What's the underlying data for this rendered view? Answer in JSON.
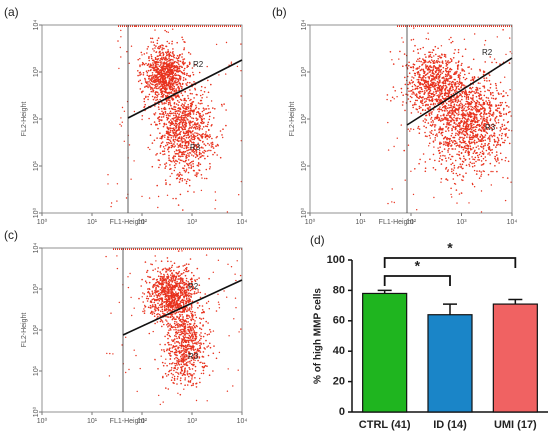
{
  "chart_data": [
    {
      "type": "scatter",
      "panel_label": "(a)",
      "xlabel": "FL1-Height",
      "ylabel": "FL2-Height",
      "log_scale": true,
      "xlim": [
        1,
        10000
      ],
      "ylim": [
        1,
        10000
      ],
      "xticks": [
        {
          "value": 1,
          "label": "10⁰"
        },
        {
          "value": 10,
          "label": "10¹"
        },
        {
          "value": 100,
          "label": "10²"
        },
        {
          "value": 1000,
          "label": "10³"
        },
        {
          "value": 10000,
          "label": "10⁴"
        }
      ],
      "yticks": [
        {
          "value": 1,
          "label": "10⁰"
        },
        {
          "value": 10,
          "label": "10¹"
        },
        {
          "value": 100,
          "label": "10²"
        },
        {
          "value": 1000,
          "label": "10³"
        },
        {
          "value": 10000,
          "label": "10⁴"
        }
      ],
      "gates": [
        "R2",
        "R3"
      ],
      "color": "#e8321e"
    },
    {
      "type": "scatter",
      "panel_label": "(b)",
      "xlabel": "FL1-Height",
      "ylabel": "FL2-Height",
      "log_scale": true,
      "xlim": [
        1,
        10000
      ],
      "ylim": [
        1,
        10000
      ],
      "xticks": [
        {
          "value": 1,
          "label": "10⁰"
        },
        {
          "value": 10,
          "label": "10¹"
        },
        {
          "value": 100,
          "label": "10²"
        },
        {
          "value": 1000,
          "label": "10³"
        },
        {
          "value": 10000,
          "label": "10⁴"
        }
      ],
      "yticks": [
        {
          "value": 1,
          "label": "10⁰"
        },
        {
          "value": 10,
          "label": "10¹"
        },
        {
          "value": 100,
          "label": "10²"
        },
        {
          "value": 1000,
          "label": "10³"
        },
        {
          "value": 10000,
          "label": "10⁴"
        }
      ],
      "gates": [
        "R2",
        "R3"
      ],
      "color": "#e8321e"
    },
    {
      "type": "scatter",
      "panel_label": "(c)",
      "xlabel": "FL1-Height",
      "ylabel": "FL2-Height",
      "log_scale": true,
      "xlim": [
        1,
        10000
      ],
      "ylim": [
        1,
        10000
      ],
      "xticks": [
        {
          "value": 1,
          "label": "10⁰"
        },
        {
          "value": 10,
          "label": "10¹"
        },
        {
          "value": 100,
          "label": "10²"
        },
        {
          "value": 1000,
          "label": "10³"
        },
        {
          "value": 10000,
          "label": "10⁴"
        }
      ],
      "yticks": [
        {
          "value": 1,
          "label": "10⁰"
        },
        {
          "value": 10,
          "label": "10¹"
        },
        {
          "value": 100,
          "label": "10²"
        },
        {
          "value": 1000,
          "label": "10³"
        },
        {
          "value": 10000,
          "label": "10⁴"
        }
      ],
      "gates": [
        "R2",
        "R3"
      ],
      "color": "#e8321e"
    },
    {
      "type": "bar",
      "panel_label": "(d)",
      "ylabel": "% of high MMP cells",
      "categories": [
        "CTRL (41)",
        "ID (14)",
        "UMI (17)"
      ],
      "values": [
        78,
        64,
        71
      ],
      "errors": [
        2,
        7,
        3
      ],
      "colors": [
        "#1fb51f",
        "#1a85c8",
        "#f06262"
      ],
      "ylim": [
        0,
        100
      ],
      "yticks": [
        0,
        20,
        40,
        60,
        80,
        100
      ],
      "significance": [
        "*",
        "*"
      ]
    }
  ]
}
